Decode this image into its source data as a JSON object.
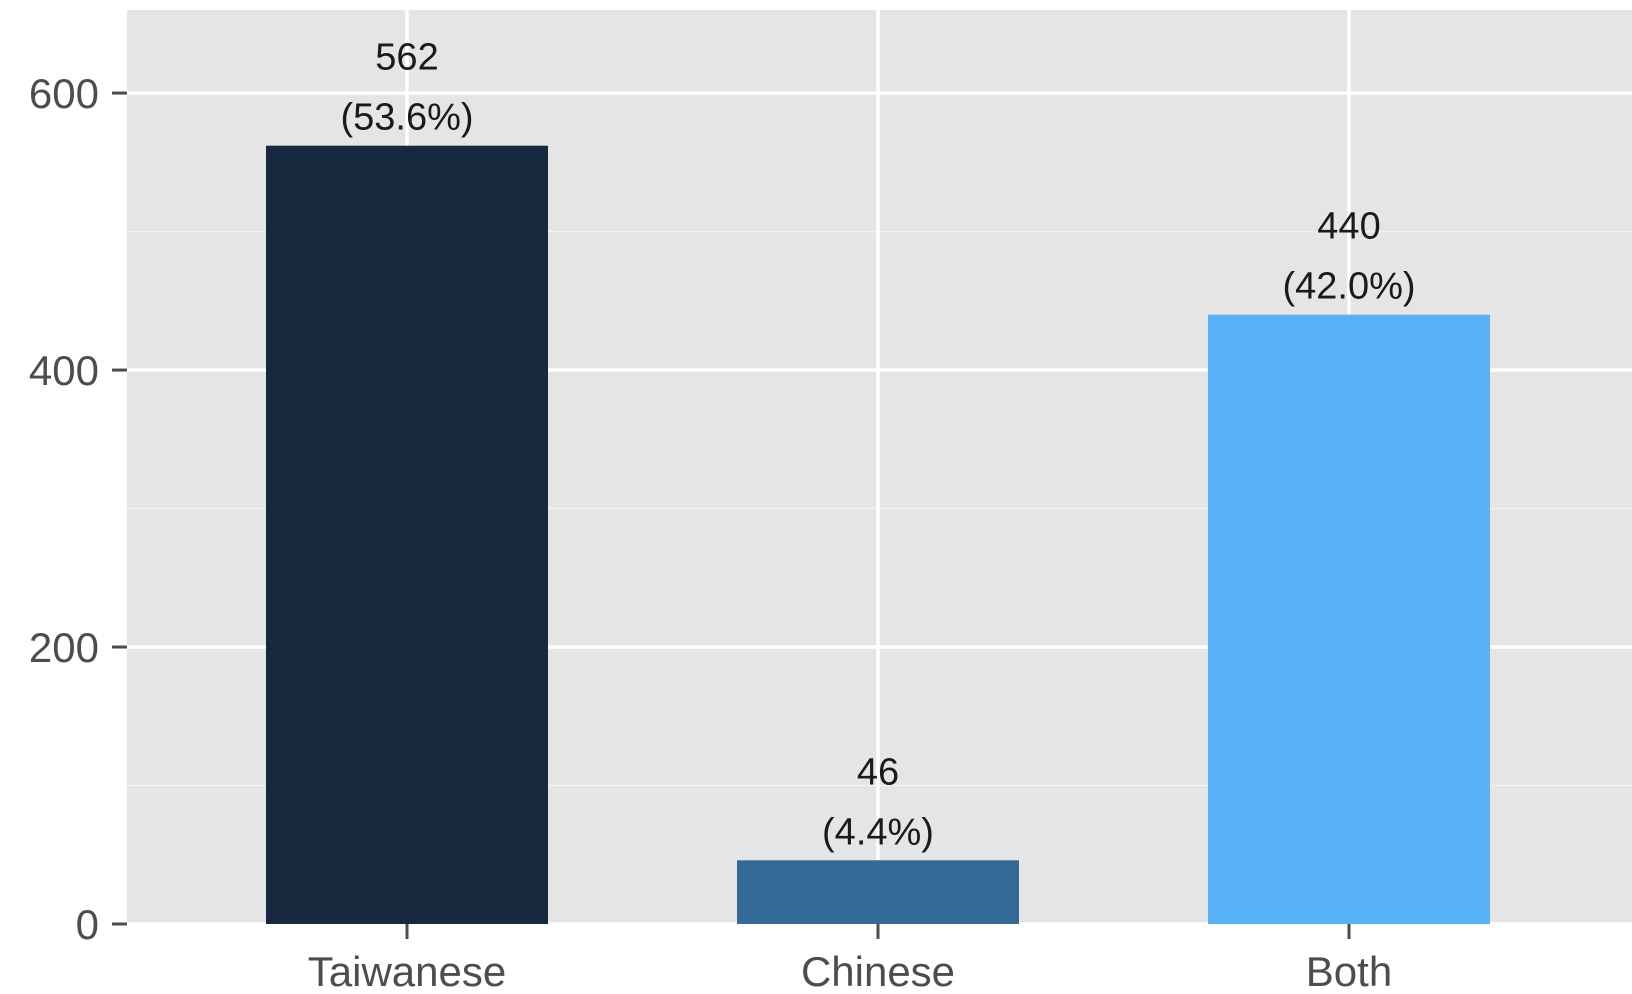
{
  "chart_data": {
    "type": "bar",
    "title": "",
    "xlabel": "",
    "ylabel": "",
    "categories": [
      "Taiwanese",
      "Chinese",
      "Both"
    ],
    "values": [
      562,
      46,
      440
    ],
    "value_labels": [
      "562",
      "46",
      "440"
    ],
    "percent_labels": [
      "(53.6%)",
      "(4.4%)",
      "(42.0%)"
    ],
    "colors": [
      "#16293f",
      "#336a98",
      "#56b1f7"
    ],
    "ylim": [
      0,
      660
    ],
    "yticks": [
      0,
      200,
      400,
      600
    ],
    "ytick_labels": [
      "0",
      "200",
      "400",
      "600"
    ],
    "grid": true,
    "legend": "none",
    "background": "#e5e5e5"
  }
}
